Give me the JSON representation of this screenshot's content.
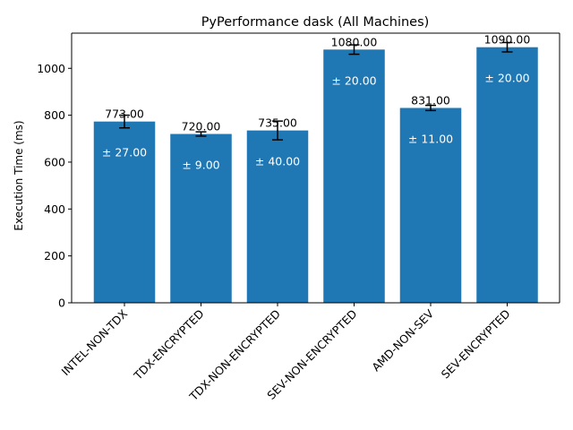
{
  "chart_data": {
    "type": "bar",
    "title": "PyPerformance dask (All Machines)",
    "xlabel": "",
    "ylabel": "Execution Time (ms)",
    "ylim": [
      0,
      1150
    ],
    "yticks": [
      0,
      200,
      400,
      600,
      800,
      1000
    ],
    "grid": false,
    "bar_color": "#1f77b4",
    "categories": [
      "INTEL-NON-TDX",
      "TDX-ENCRYPTED",
      "TDX-NON-ENCRYPTED",
      "SEV-NON-ENCRYPTED",
      "AMD-NON-SEV",
      "SEV-ENCRYPTED"
    ],
    "values": [
      773,
      720,
      735,
      1080,
      831,
      1090
    ],
    "errors": [
      27,
      9,
      40,
      20,
      11,
      20
    ],
    "value_labels": [
      "773.00",
      "720.00",
      "735.00",
      "1080.00",
      "831.00",
      "1090.00"
    ],
    "error_labels": [
      "± 27.00",
      "± 9.00",
      "± 40.00",
      "± 20.00",
      "± 11.00",
      "± 20.00"
    ]
  }
}
